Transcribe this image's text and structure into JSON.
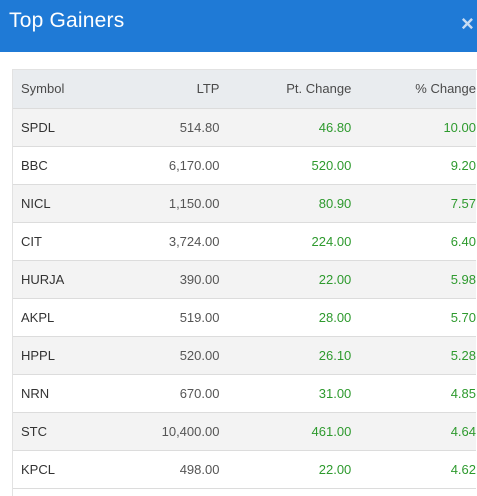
{
  "header": {
    "title": "Top Gainers",
    "close_glyph": "×"
  },
  "table": {
    "columns": [
      "Symbol",
      "LTP",
      "Pt. Change",
      "% Change"
    ],
    "rows": [
      {
        "symbol": "SPDL",
        "ltp": "514.80",
        "pt_change": "46.80",
        "pct_change": "10.00"
      },
      {
        "symbol": "BBC",
        "ltp": "6,170.00",
        "pt_change": "520.00",
        "pct_change": "9.20"
      },
      {
        "symbol": "NICL",
        "ltp": "1,150.00",
        "pt_change": "80.90",
        "pct_change": "7.57"
      },
      {
        "symbol": "CIT",
        "ltp": "3,724.00",
        "pt_change": "224.00",
        "pct_change": "6.40"
      },
      {
        "symbol": "HURJA",
        "ltp": "390.00",
        "pt_change": "22.00",
        "pct_change": "5.98"
      },
      {
        "symbol": "AKPL",
        "ltp": "519.00",
        "pt_change": "28.00",
        "pct_change": "5.70"
      },
      {
        "symbol": "HPPL",
        "ltp": "520.00",
        "pt_change": "26.10",
        "pct_change": "5.28"
      },
      {
        "symbol": "NRN",
        "ltp": "670.00",
        "pt_change": "31.00",
        "pct_change": "4.85"
      },
      {
        "symbol": "STC",
        "ltp": "10,400.00",
        "pt_change": "461.00",
        "pct_change": "4.64"
      },
      {
        "symbol": "KPCL",
        "ltp": "498.00",
        "pt_change": "22.00",
        "pct_change": "4.62"
      }
    ]
  },
  "colors": {
    "header_bg": "#1f7ad6",
    "gain_text": "#2e9a2e"
  }
}
